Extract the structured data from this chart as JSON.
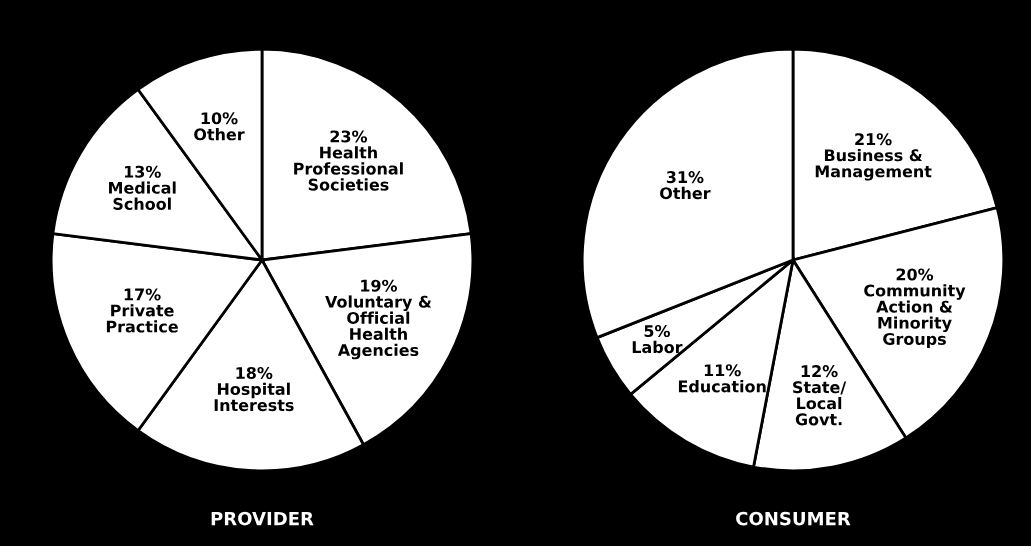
{
  "chart_data": [
    {
      "type": "pie",
      "title": "PROVIDER",
      "categories": [
        "Health\nProfessional\nSocieties",
        "Voluntary &\nOfficial\nHealth\nAgencies",
        "Hospital\nInterests",
        "Private\nPractice",
        "Medical\nSchool",
        "Other"
      ],
      "values": [
        23,
        19,
        18,
        17,
        13,
        10
      ],
      "value_labels": [
        "23%",
        "19%",
        "18%",
        "17%",
        "13%",
        "10%"
      ],
      "colors": [
        "#ffffff",
        "#ffffff",
        "#ffffff",
        "#ffffff",
        "#ffffff",
        "#ffffff"
      ]
    },
    {
      "type": "pie",
      "title": "CONSUMER",
      "categories": [
        "Business &\nManagement",
        "Community\nAction &\nMinority\nGroups",
        "State/\nLocal\nGovt.",
        "Education",
        "Labor",
        "Other"
      ],
      "values": [
        21,
        20,
        12,
        11,
        5,
        31
      ],
      "value_labels": [
        "21%",
        "20%",
        "12%",
        "11%",
        "5%",
        "31%"
      ],
      "colors": [
        "#ffffff",
        "#ffffff",
        "#ffffff",
        "#ffffff",
        "#ffffff",
        "#ffffff"
      ]
    }
  ]
}
